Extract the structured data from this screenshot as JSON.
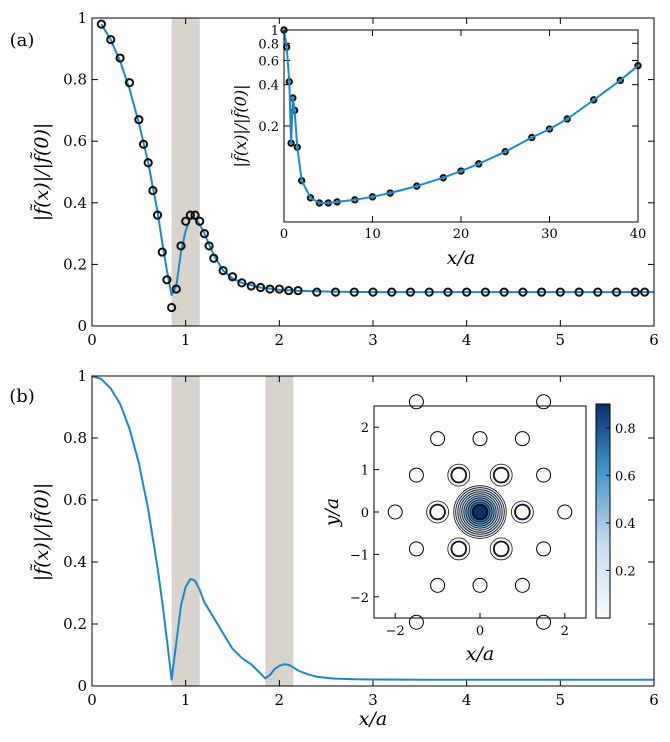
{
  "colors": {
    "curve": "#1f87c9",
    "marker": "#111111",
    "band": "#d8d3cc",
    "map_high": "#08306b",
    "map_low": "#f7fbff"
  },
  "chart_data": [
    {
      "id": "a_main",
      "panel_label": "(a)",
      "type": "scatter",
      "xlabel": "",
      "ylabel": "|f̃(x)|/|f̃(0)|",
      "xlim": [
        0,
        6
      ],
      "ylim": [
        0,
        1
      ],
      "xticks": [
        "0",
        "1",
        "2",
        "3",
        "4",
        "5",
        "6"
      ],
      "yticks": [
        "0",
        "0.2",
        "0.4",
        "0.6",
        "0.8",
        "1"
      ],
      "bands": [
        [
          0.85,
          1.15
        ]
      ],
      "series": [
        {
          "kind": "markers",
          "x": [
            0.1,
            0.2,
            0.3,
            0.4,
            0.5,
            0.55,
            0.6,
            0.65,
            0.7,
            0.75,
            0.8,
            0.85,
            0.9,
            0.95,
            1.0,
            1.05,
            1.1,
            1.15,
            1.2,
            1.25,
            1.3,
            1.4,
            1.5,
            1.6,
            1.7,
            1.8,
            1.9,
            2.0,
            2.1,
            2.2,
            2.4,
            2.6,
            2.8,
            3.0,
            3.2,
            3.4,
            3.6,
            3.8,
            4.0,
            4.2,
            4.4,
            4.6,
            4.8,
            5.0,
            5.2,
            5.4,
            5.6,
            5.8,
            5.9
          ],
          "y": [
            0.98,
            0.93,
            0.87,
            0.79,
            0.67,
            0.59,
            0.53,
            0.44,
            0.36,
            0.24,
            0.15,
            0.06,
            0.12,
            0.26,
            0.34,
            0.36,
            0.36,
            0.34,
            0.3,
            0.26,
            0.22,
            0.18,
            0.16,
            0.14,
            0.13,
            0.125,
            0.12,
            0.12,
            0.115,
            0.115,
            0.11,
            0.11,
            0.11,
            0.11,
            0.11,
            0.11,
            0.11,
            0.11,
            0.11,
            0.11,
            0.11,
            0.11,
            0.11,
            0.11,
            0.11,
            0.11,
            0.11,
            0.11,
            0.11
          ]
        },
        {
          "kind": "line",
          "x": [
            0.1,
            0.2,
            0.3,
            0.4,
            0.5,
            0.6,
            0.7,
            0.75,
            0.8,
            0.85,
            0.9,
            0.95,
            1.0,
            1.05,
            1.1,
            1.15,
            1.2,
            1.3,
            1.4,
            1.5,
            1.6,
            1.8,
            2.0,
            2.2,
            2.6,
            3.0,
            4.0,
            5.0,
            6.0
          ],
          "y": [
            0.98,
            0.93,
            0.86,
            0.77,
            0.66,
            0.53,
            0.37,
            0.27,
            0.18,
            0.1,
            0.13,
            0.24,
            0.31,
            0.35,
            0.35,
            0.33,
            0.3,
            0.23,
            0.18,
            0.155,
            0.14,
            0.125,
            0.118,
            0.114,
            0.111,
            0.11,
            0.11,
            0.11,
            0.11
          ]
        }
      ]
    },
    {
      "id": "a_inset",
      "type": "scatter",
      "xlabel": "x/a",
      "ylabel": "|f̃(x)|/|f̃(0)|",
      "xlim": [
        0,
        40
      ],
      "ylim": [
        0.04,
        1
      ],
      "yscale": "log",
      "xticks": [
        "0",
        "10",
        "20",
        "30",
        "40"
      ],
      "yticks": [
        "0.2",
        "0.4",
        "0.6",
        "0.8",
        "1"
      ],
      "series": [
        {
          "kind": "markers_and_line",
          "x": [
            0,
            0.3,
            0.6,
            0.8,
            1.0,
            1.2,
            1.5,
            2,
            3,
            4,
            5,
            6,
            8,
            10,
            12,
            15,
            18,
            20,
            22,
            25,
            28,
            30,
            32,
            35,
            38,
            40
          ],
          "y": [
            1.0,
            0.75,
            0.42,
            0.15,
            0.32,
            0.26,
            0.14,
            0.08,
            0.06,
            0.055,
            0.055,
            0.056,
            0.058,
            0.061,
            0.065,
            0.073,
            0.084,
            0.094,
            0.106,
            0.13,
            0.165,
            0.19,
            0.225,
            0.31,
            0.43,
            0.55
          ]
        }
      ]
    },
    {
      "id": "b_main",
      "panel_label": "(b)",
      "type": "line",
      "xlabel": "x/a",
      "ylabel": "|f̃(x)|/|f̃(0)|",
      "xlim": [
        0,
        6
      ],
      "ylim": [
        0,
        1
      ],
      "xticks": [
        "0",
        "1",
        "2",
        "3",
        "4",
        "5",
        "6"
      ],
      "yticks": [
        "0",
        "0.2",
        "0.4",
        "0.6",
        "0.8",
        "1"
      ],
      "bands": [
        [
          0.85,
          1.15
        ],
        [
          1.85,
          2.15
        ]
      ],
      "series": [
        {
          "kind": "line",
          "x": [
            0,
            0.1,
            0.2,
            0.3,
            0.4,
            0.5,
            0.6,
            0.7,
            0.75,
            0.8,
            0.85,
            0.9,
            0.95,
            1.0,
            1.05,
            1.1,
            1.15,
            1.2,
            1.3,
            1.4,
            1.5,
            1.6,
            1.7,
            1.8,
            1.85,
            1.9,
            1.95,
            2.0,
            2.05,
            2.1,
            2.15,
            2.2,
            2.3,
            2.4,
            2.5,
            2.6,
            2.8,
            3.0,
            3.5,
            4.0,
            5.0,
            6.0
          ],
          "y": [
            1.0,
            0.99,
            0.96,
            0.91,
            0.83,
            0.72,
            0.57,
            0.38,
            0.27,
            0.15,
            0.02,
            0.14,
            0.26,
            0.32,
            0.345,
            0.34,
            0.31,
            0.27,
            0.22,
            0.17,
            0.12,
            0.09,
            0.07,
            0.04,
            0.025,
            0.035,
            0.055,
            0.065,
            0.07,
            0.068,
            0.06,
            0.05,
            0.038,
            0.03,
            0.026,
            0.024,
            0.022,
            0.021,
            0.02,
            0.02,
            0.02,
            0.02
          ]
        }
      ]
    },
    {
      "id": "b_inset",
      "type": "heatmap",
      "xlabel": "x/a",
      "ylabel": "y/a",
      "xlim": [
        -2.5,
        2.5
      ],
      "ylim": [
        -2.5,
        2.5
      ],
      "xticks": [
        "−2",
        "0",
        "2"
      ],
      "yticks": [
        "−2",
        "−1",
        "0",
        "1",
        "2"
      ],
      "colorbar": {
        "range": [
          0,
          0.9
        ],
        "ticks": [
          "0.2",
          "0.4",
          "0.6",
          "0.8"
        ]
      },
      "rods": [
        [
          0,
          0
        ],
        [
          0.5,
          0.87
        ],
        [
          -0.5,
          0.87
        ],
        [
          1,
          0
        ],
        [
          -1,
          0
        ],
        [
          0.5,
          -0.87
        ],
        [
          -0.5,
          -0.87
        ],
        [
          1,
          1.73
        ],
        [
          0,
          1.73
        ],
        [
          -1,
          1.73
        ],
        [
          1.5,
          0.87
        ],
        [
          -1.5,
          0.87
        ],
        [
          2,
          0
        ],
        [
          -2,
          0
        ],
        [
          1.5,
          -0.87
        ],
        [
          -1.5,
          -0.87
        ],
        [
          1,
          -1.73
        ],
        [
          0,
          -1.73
        ],
        [
          -1,
          -1.73
        ],
        [
          1.5,
          2.6
        ],
        [
          -1.5,
          2.6
        ],
        [
          1.5,
          -2.6
        ],
        [
          -1.5,
          -2.6
        ]
      ],
      "peaks": [
        {
          "x": 0,
          "y": 0,
          "value": 0.9
        },
        {
          "x": 0.5,
          "y": 0.87,
          "value": 0.3
        },
        {
          "x": -0.5,
          "y": 0.87,
          "value": 0.3
        },
        {
          "x": 1,
          "y": 0,
          "value": 0.3
        },
        {
          "x": -1,
          "y": 0,
          "value": 0.3
        },
        {
          "x": 0.5,
          "y": -0.87,
          "value": 0.3
        },
        {
          "x": -0.5,
          "y": -0.87,
          "value": 0.3
        }
      ]
    }
  ]
}
